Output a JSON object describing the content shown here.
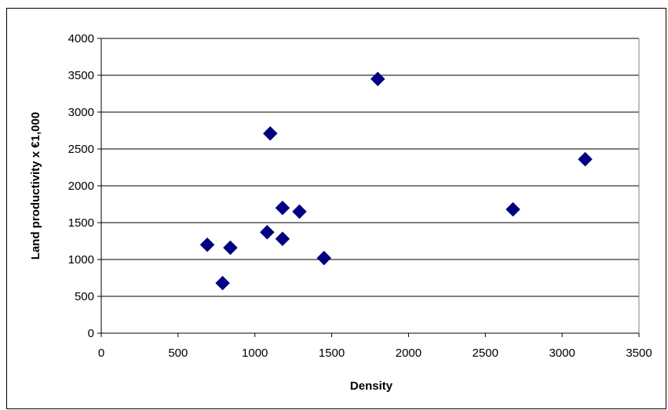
{
  "chart_data": {
    "type": "scatter",
    "title": "",
    "xlabel": "Density",
    "ylabel": "Land productivity x €1,000",
    "xlim": [
      0,
      3500
    ],
    "ylim": [
      0,
      4000
    ],
    "x_ticks": [
      0,
      500,
      1000,
      1500,
      2000,
      2500,
      3000,
      3500
    ],
    "y_ticks": [
      0,
      500,
      1000,
      1500,
      2000,
      2500,
      3000,
      3500,
      4000
    ],
    "grid": "horizontal",
    "legend": "none",
    "marker": "diamond",
    "marker_color": "#000080",
    "points": [
      {
        "x": 690,
        "y": 1200
      },
      {
        "x": 790,
        "y": 680
      },
      {
        "x": 840,
        "y": 1160
      },
      {
        "x": 1080,
        "y": 1370
      },
      {
        "x": 1100,
        "y": 2710
      },
      {
        "x": 1180,
        "y": 1700
      },
      {
        "x": 1180,
        "y": 1280
      },
      {
        "x": 1290,
        "y": 1650
      },
      {
        "x": 1450,
        "y": 1020
      },
      {
        "x": 1800,
        "y": 3450
      },
      {
        "x": 2680,
        "y": 1680
      },
      {
        "x": 3150,
        "y": 2360
      }
    ]
  }
}
